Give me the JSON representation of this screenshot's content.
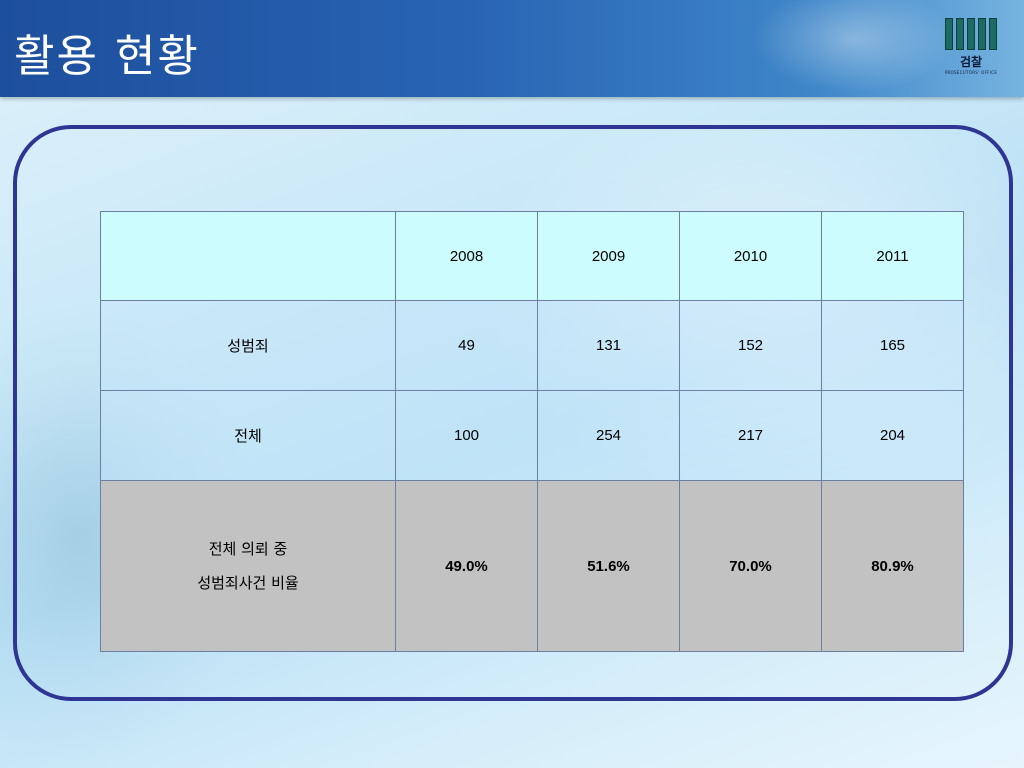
{
  "slide": {
    "title": "활용 현황"
  },
  "logo": {
    "name": "검찰",
    "subtitle": "PROSECUTORS' OFFICE"
  },
  "table": {
    "columns": [
      "",
      "2008",
      "2009",
      "2010",
      "2011"
    ],
    "rows": [
      {
        "label": "성범죄",
        "values": [
          "49",
          "131",
          "152",
          "165"
        ]
      },
      {
        "label": "전체",
        "values": [
          "100",
          "254",
          "217",
          "204"
        ]
      },
      {
        "label_line1": "전체 의뢰 중",
        "label_line2": "성범죄사건 비율",
        "values": [
          "49.0%",
          "51.6%",
          "70.0%",
          "80.9%"
        ]
      }
    ]
  },
  "colors": {
    "title_bar": "#2863b3",
    "frame_border": "#2e3592",
    "header_row": "#cdfcff",
    "ratio_row": "#c2c2c2"
  }
}
